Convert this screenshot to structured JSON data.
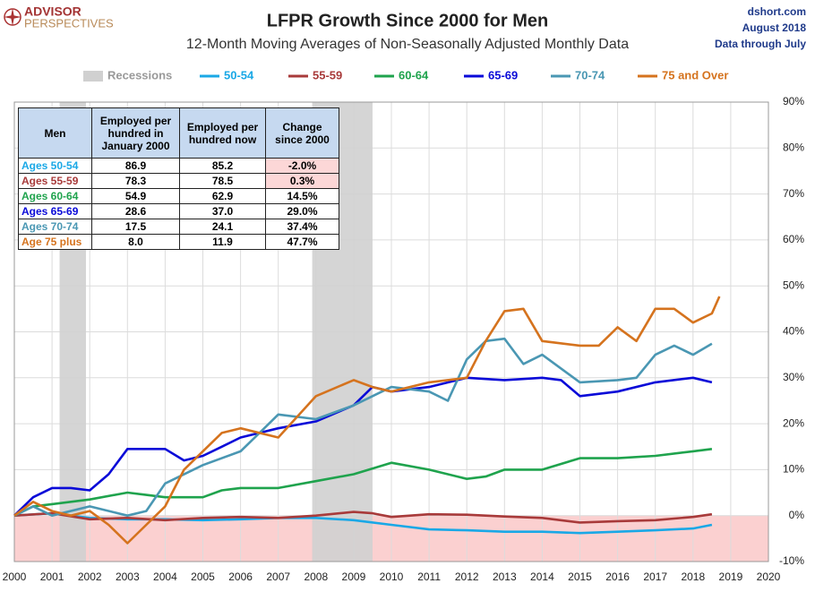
{
  "logo": {
    "line1": "ADVISOR",
    "line2": "PERSPECTIVES"
  },
  "source": {
    "site": "dshort.com",
    "date": "August 2018",
    "through": "Data through July"
  },
  "chart_data": {
    "type": "line",
    "title": "LFPR Growth Since 2000 for Men",
    "subtitle": "12-Month Moving Averages of Non-Seasonally Adjusted Monthly Data",
    "xlim": [
      2000,
      2020
    ],
    "xticks": [
      2000,
      2001,
      2002,
      2003,
      2004,
      2005,
      2006,
      2007,
      2008,
      2009,
      2010,
      2011,
      2012,
      2013,
      2014,
      2015,
      2016,
      2017,
      2018,
      2019,
      2020
    ],
    "ylim": [
      -10,
      90
    ],
    "yticks": [
      {
        "value": -10,
        "label": "-10%"
      },
      {
        "value": 0,
        "label": "0%"
      },
      {
        "value": 10,
        "label": "10%"
      },
      {
        "value": 20,
        "label": "20%"
      },
      {
        "value": 30,
        "label": "30%"
      },
      {
        "value": 40,
        "label": "40%"
      },
      {
        "value": 50,
        "label": "50%"
      },
      {
        "value": 60,
        "label": "60%"
      },
      {
        "value": 70,
        "label": "70%"
      },
      {
        "value": 80,
        "label": "80%"
      },
      {
        "value": 90,
        "label": "90%"
      }
    ],
    "grid": true,
    "negative_shade_color": "#fbd0d0",
    "recessions_label": "Recessions",
    "recessions_color": "#d0d0d0",
    "recessions": [
      [
        2001.2,
        2001.9
      ],
      [
        2007.9,
        2009.5
      ]
    ],
    "series": [
      {
        "name": "50-54",
        "color": "#1aa8e6",
        "x": [
          2000,
          2001,
          2002,
          2003,
          2004,
          2005,
          2006,
          2007,
          2008,
          2009,
          2010,
          2011,
          2012,
          2013,
          2014,
          2015,
          2016,
          2017,
          2018,
          2018.5
        ],
        "values": [
          0,
          0.5,
          -0.5,
          -0.8,
          -0.8,
          -1,
          -0.8,
          -0.5,
          -0.5,
          -1,
          -2,
          -3,
          -3.2,
          -3.5,
          -3.5,
          -3.8,
          -3.5,
          -3.2,
          -2.8,
          -2
        ]
      },
      {
        "name": "55-59",
        "color": "#a83a3a",
        "x": [
          2000,
          2001,
          2002,
          2003,
          2004,
          2005,
          2006,
          2007,
          2008,
          2009,
          2009.5,
          2010,
          2011,
          2012,
          2013,
          2014,
          2015,
          2016,
          2017,
          2018,
          2018.5
        ],
        "values": [
          0,
          0.5,
          -0.8,
          -0.5,
          -1,
          -0.5,
          -0.3,
          -0.5,
          0,
          0.8,
          0.5,
          -0.3,
          0.3,
          0.2,
          -0.2,
          -0.5,
          -1.5,
          -1.2,
          -1,
          -0.3,
          0.3
        ]
      },
      {
        "name": "60-64",
        "color": "#1fa34d",
        "x": [
          2000,
          2000.5,
          2001,
          2002,
          2003,
          2003.5,
          2004,
          2005,
          2005.5,
          2006,
          2007,
          2008,
          2009,
          2010,
          2011,
          2012,
          2012.5,
          2013,
          2014,
          2015,
          2016,
          2017,
          2018,
          2018.5
        ],
        "values": [
          0,
          2,
          2.5,
          3.5,
          5,
          4.5,
          4,
          4,
          5.5,
          6,
          6,
          7.5,
          9,
          11.5,
          10,
          8,
          8.5,
          10,
          10,
          12.5,
          12.5,
          13,
          14,
          14.5
        ]
      },
      {
        "name": "65-69",
        "color": "#0a0ad8",
        "x": [
          2000,
          2000.5,
          2001,
          2001.5,
          2002,
          2002.5,
          2003,
          2003.5,
          2004,
          2004.5,
          2005,
          2005.5,
          2006,
          2007,
          2008,
          2009,
          2009.5,
          2010,
          2011,
          2012,
          2013,
          2014,
          2014.5,
          2015,
          2016,
          2017,
          2018,
          2018.5
        ],
        "values": [
          0,
          4,
          6,
          6,
          5.5,
          9,
          14.5,
          14.5,
          14.5,
          12,
          13,
          15,
          17,
          19,
          20.5,
          24,
          28,
          27,
          28,
          30,
          29.5,
          30,
          29.5,
          26,
          27,
          29,
          30,
          29
        ]
      },
      {
        "name": "70-74",
        "color": "#4a97b3",
        "x": [
          2000,
          2000.5,
          2001,
          2002,
          2003,
          2003.5,
          2004,
          2005,
          2006,
          2006.5,
          2007,
          2008,
          2009,
          2010,
          2011,
          2011.5,
          2012,
          2012.5,
          2013,
          2013.5,
          2014,
          2015,
          2016,
          2016.5,
          2017,
          2017.5,
          2018,
          2018.5
        ],
        "values": [
          0,
          2,
          0,
          2,
          0,
          1,
          7,
          11,
          14,
          18,
          22,
          21,
          24,
          28,
          27,
          25,
          34,
          38,
          38.5,
          33,
          35,
          29,
          29.5,
          30,
          35,
          37,
          35,
          37.4
        ]
      },
      {
        "name": "75 and Over",
        "color": "#d5731e",
        "x": [
          2000,
          2000.5,
          2001,
          2001.5,
          2002,
          2002.5,
          2003,
          2003.5,
          2004,
          2004.5,
          2005,
          2005.5,
          2006,
          2007,
          2008,
          2009,
          2009.5,
          2010,
          2011,
          2012,
          2012.5,
          2013,
          2013.5,
          2014,
          2015,
          2015.5,
          2016,
          2016.5,
          2017,
          2017.5,
          2018,
          2018.5,
          2018.7
        ],
        "values": [
          0,
          3,
          1,
          0,
          1,
          -2,
          -6,
          -2,
          2,
          10,
          14,
          18,
          19,
          17,
          26,
          29.5,
          28,
          27,
          29,
          30,
          38,
          44.5,
          45,
          38,
          37,
          37,
          41,
          38,
          45,
          45,
          42,
          44,
          47.7
        ]
      }
    ]
  },
  "table": {
    "header": [
      "Men",
      "Employed per hundred in January 2000",
      "Employed per hundred now",
      "Change since 2000"
    ],
    "header_color": "#c6d9f0",
    "highlight_color": "#fcd7d7",
    "highlight_rows": [
      0,
      1
    ],
    "rows": [
      [
        "Ages 50-54",
        "86.9",
        "85.2",
        "-2.0%"
      ],
      [
        "Ages 55-59",
        "78.3",
        "78.5",
        "0.3%"
      ],
      [
        "Ages 60-64",
        "54.9",
        "62.9",
        "14.5%"
      ],
      [
        "Ages 65-69",
        "28.6",
        "37.0",
        "29.0%"
      ],
      [
        "Ages 70-74",
        "17.5",
        "24.1",
        "37.4%"
      ],
      [
        "Age 75 plus",
        "8.0",
        "11.9",
        "47.7%"
      ]
    ]
  }
}
